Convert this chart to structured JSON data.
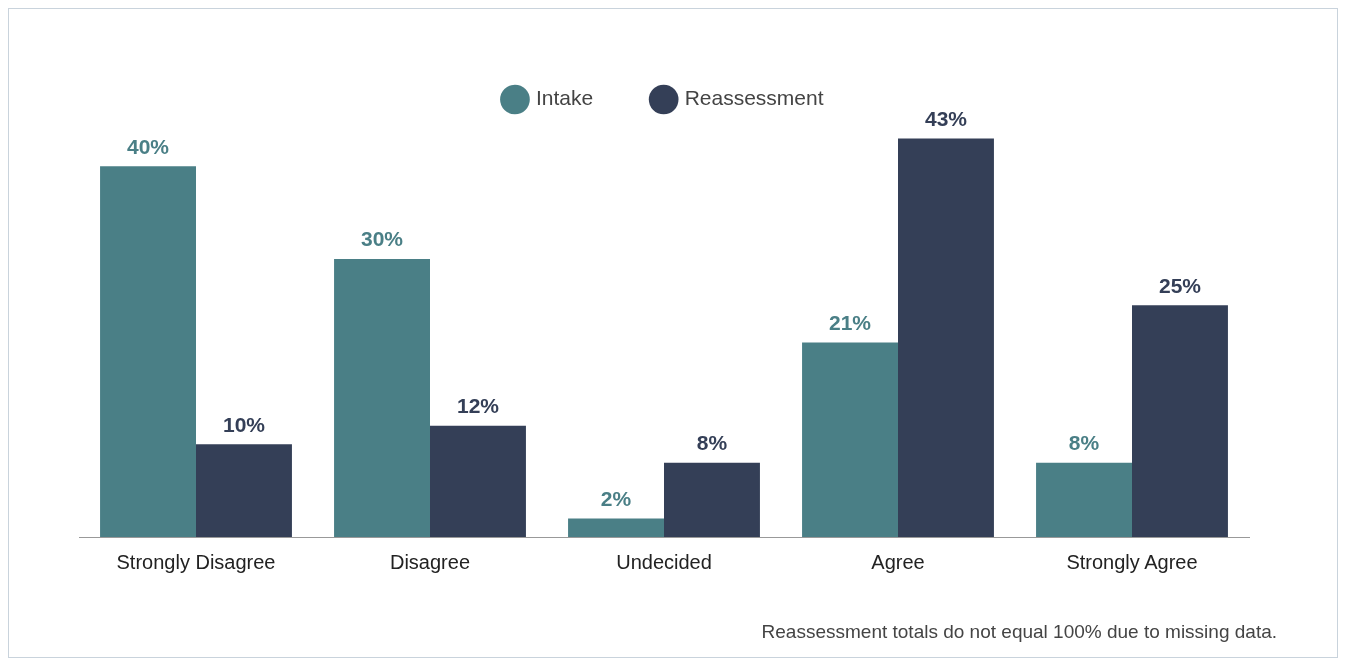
{
  "chart_data": {
    "type": "bar",
    "categories": [
      "Strongly Disagree",
      "Disagree",
      "Undecided",
      "Agree",
      "Strongly Agree"
    ],
    "series": [
      {
        "name": "Intake",
        "color": "#4a7f86",
        "values": [
          40,
          30,
          2,
          21,
          8
        ],
        "value_labels": [
          "40%",
          "30%",
          "2%",
          "21%",
          "8%"
        ]
      },
      {
        "name": "Reassessment",
        "color": "#343f57",
        "values": [
          10,
          12,
          8,
          43,
          25
        ],
        "value_labels": [
          "10%",
          "12%",
          "8%",
          "43%",
          "25%"
        ]
      }
    ],
    "legend": "top",
    "annotations": [
      "Reassessment totals do not equal 100% due to missing data."
    ]
  }
}
